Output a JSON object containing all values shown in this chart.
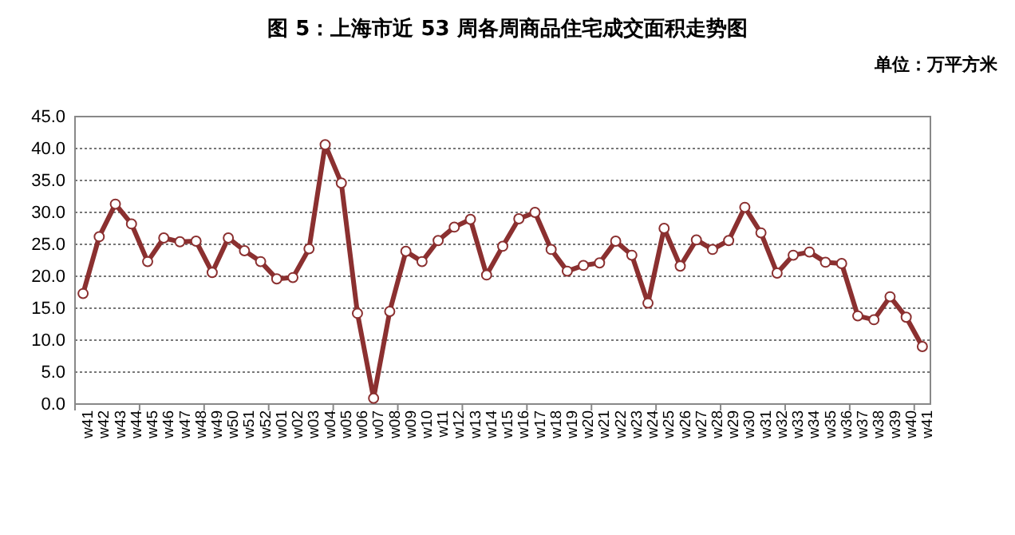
{
  "chart_data": {
    "type": "line",
    "title": "图 5：上海市近 53 周各周商品住宅成交面积走势图",
    "annotations": [
      "单位：万平方米"
    ],
    "categories": [
      "w41",
      "w42",
      "w43",
      "w44",
      "w45",
      "w46",
      "w47",
      "w48",
      "w49",
      "w50",
      "w51",
      "w52",
      "w01",
      "w02",
      "w03",
      "w04",
      "w05",
      "w06",
      "w07",
      "w08",
      "w09",
      "w10",
      "w11",
      "w12",
      "w13",
      "w14",
      "w15",
      "w16",
      "w17",
      "w18",
      "w19",
      "w20",
      "w21",
      "w22",
      "w23",
      "w24",
      "w25",
      "w26",
      "w27",
      "w28",
      "w29",
      "w30",
      "w31",
      "w32",
      "w33",
      "w34",
      "w35",
      "w36",
      "w37",
      "w38",
      "w39",
      "w40",
      "w41"
    ],
    "series": [
      {
        "color": "#8b3030",
        "values": [
          17.3,
          26.2,
          31.3,
          28.2,
          22.3,
          26.0,
          25.4,
          25.5,
          20.6,
          26.0,
          24.0,
          22.3,
          19.6,
          19.8,
          24.3,
          40.6,
          34.6,
          14.2,
          0.9,
          14.5,
          23.9,
          22.3,
          25.6,
          27.7,
          28.9,
          20.2,
          24.7,
          29.0,
          30.0,
          24.2,
          20.8,
          21.7,
          22.1,
          25.5,
          23.3,
          15.8,
          27.5,
          21.6,
          25.7,
          24.2,
          25.6,
          30.8,
          26.8,
          20.5,
          23.3,
          23.8,
          22.2,
          22.0,
          13.8,
          13.2,
          16.8,
          13.6,
          9.0
        ]
      }
    ],
    "ylim": [
      0,
      45
    ],
    "yticks": [
      {
        "value": 0,
        "label": "0.0"
      },
      {
        "value": 5,
        "label": "5.0"
      },
      {
        "value": 10,
        "label": "10.0"
      },
      {
        "value": 15,
        "label": "15.0"
      },
      {
        "value": 20,
        "label": "20.0"
      },
      {
        "value": 25,
        "label": "25.0"
      },
      {
        "value": 30,
        "label": "30.0"
      },
      {
        "value": 35,
        "label": "35.0"
      },
      {
        "value": 40,
        "label": "40.0"
      },
      {
        "value": 45,
        "label": "45.0"
      }
    ],
    "grid": "y",
    "marker": "circle",
    "line_style": "solid"
  }
}
